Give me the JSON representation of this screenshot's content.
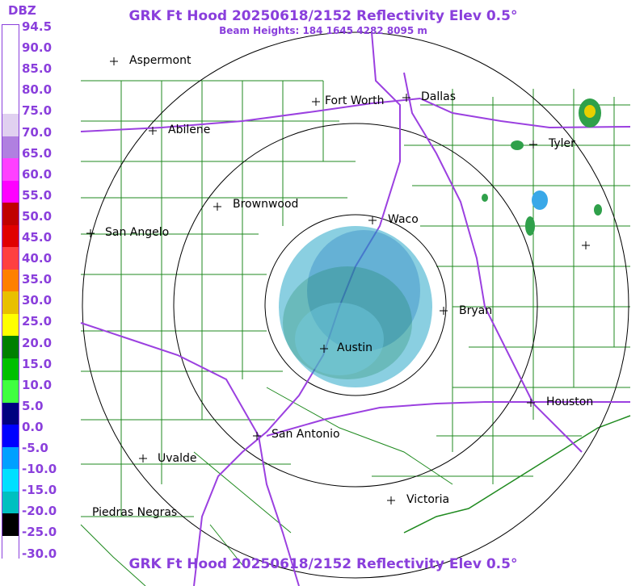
{
  "header": {
    "title": "GRK Ft Hood 20250618/2152 Reflectivity Elev 0.5°",
    "subtitle": "Beam Heights: 184 1645 4282 8095 m",
    "footer": "GRK Ft Hood 20250618/2152 Reflectivity Elev 0.5°"
  },
  "legend": {
    "title": "DBZ",
    "labels": [
      "94.5",
      "90.0",
      "85.0",
      "80.0",
      "75.0",
      "70.0",
      "65.0",
      "60.0",
      "55.0",
      "50.0",
      "45.0",
      "40.0",
      "35.0",
      "30.0",
      "25.0",
      "20.0",
      "15.0",
      "10.0",
      "5.0",
      "0.0",
      "-5.0",
      "-10.0",
      "-15.0",
      "-20.0",
      "-25.0",
      "-30.0"
    ],
    "colors": [
      "#ffffff",
      "#ffffff",
      "#ffffff",
      "#ffffff",
      "#e0d0f0",
      "#b080e0",
      "#ff40ff",
      "#ff00ff",
      "#c00000",
      "#e00000",
      "#ff4040",
      "#ff8000",
      "#e8c000",
      "#ffff00",
      "#008000",
      "#00c000",
      "#40ff40",
      "#000080",
      "#0000ff",
      "#00a0ff",
      "#00e0ff",
      "#00c0c0",
      "#000000",
      "#ffffff"
    ]
  },
  "cities": [
    {
      "name": "Aspermont"
    },
    {
      "name": "Abilene"
    },
    {
      "name": "Fort Worth"
    },
    {
      "name": "Dallas"
    },
    {
      "name": "Tyler"
    },
    {
      "name": "Brownwood"
    },
    {
      "name": "Waco"
    },
    {
      "name": "San Angelo"
    },
    {
      "name": "Bryan"
    },
    {
      "name": "Austin"
    },
    {
      "name": "Houston"
    },
    {
      "name": "San Antonio"
    },
    {
      "name": "Uvalde"
    },
    {
      "name": "Victoria"
    },
    {
      "name": "Piedras Negras"
    }
  ],
  "colors": {
    "accent": "#8a3fdc",
    "county_lines": "#1f8a1f",
    "highways": "#9b40e0",
    "range_rings": "#000000"
  }
}
